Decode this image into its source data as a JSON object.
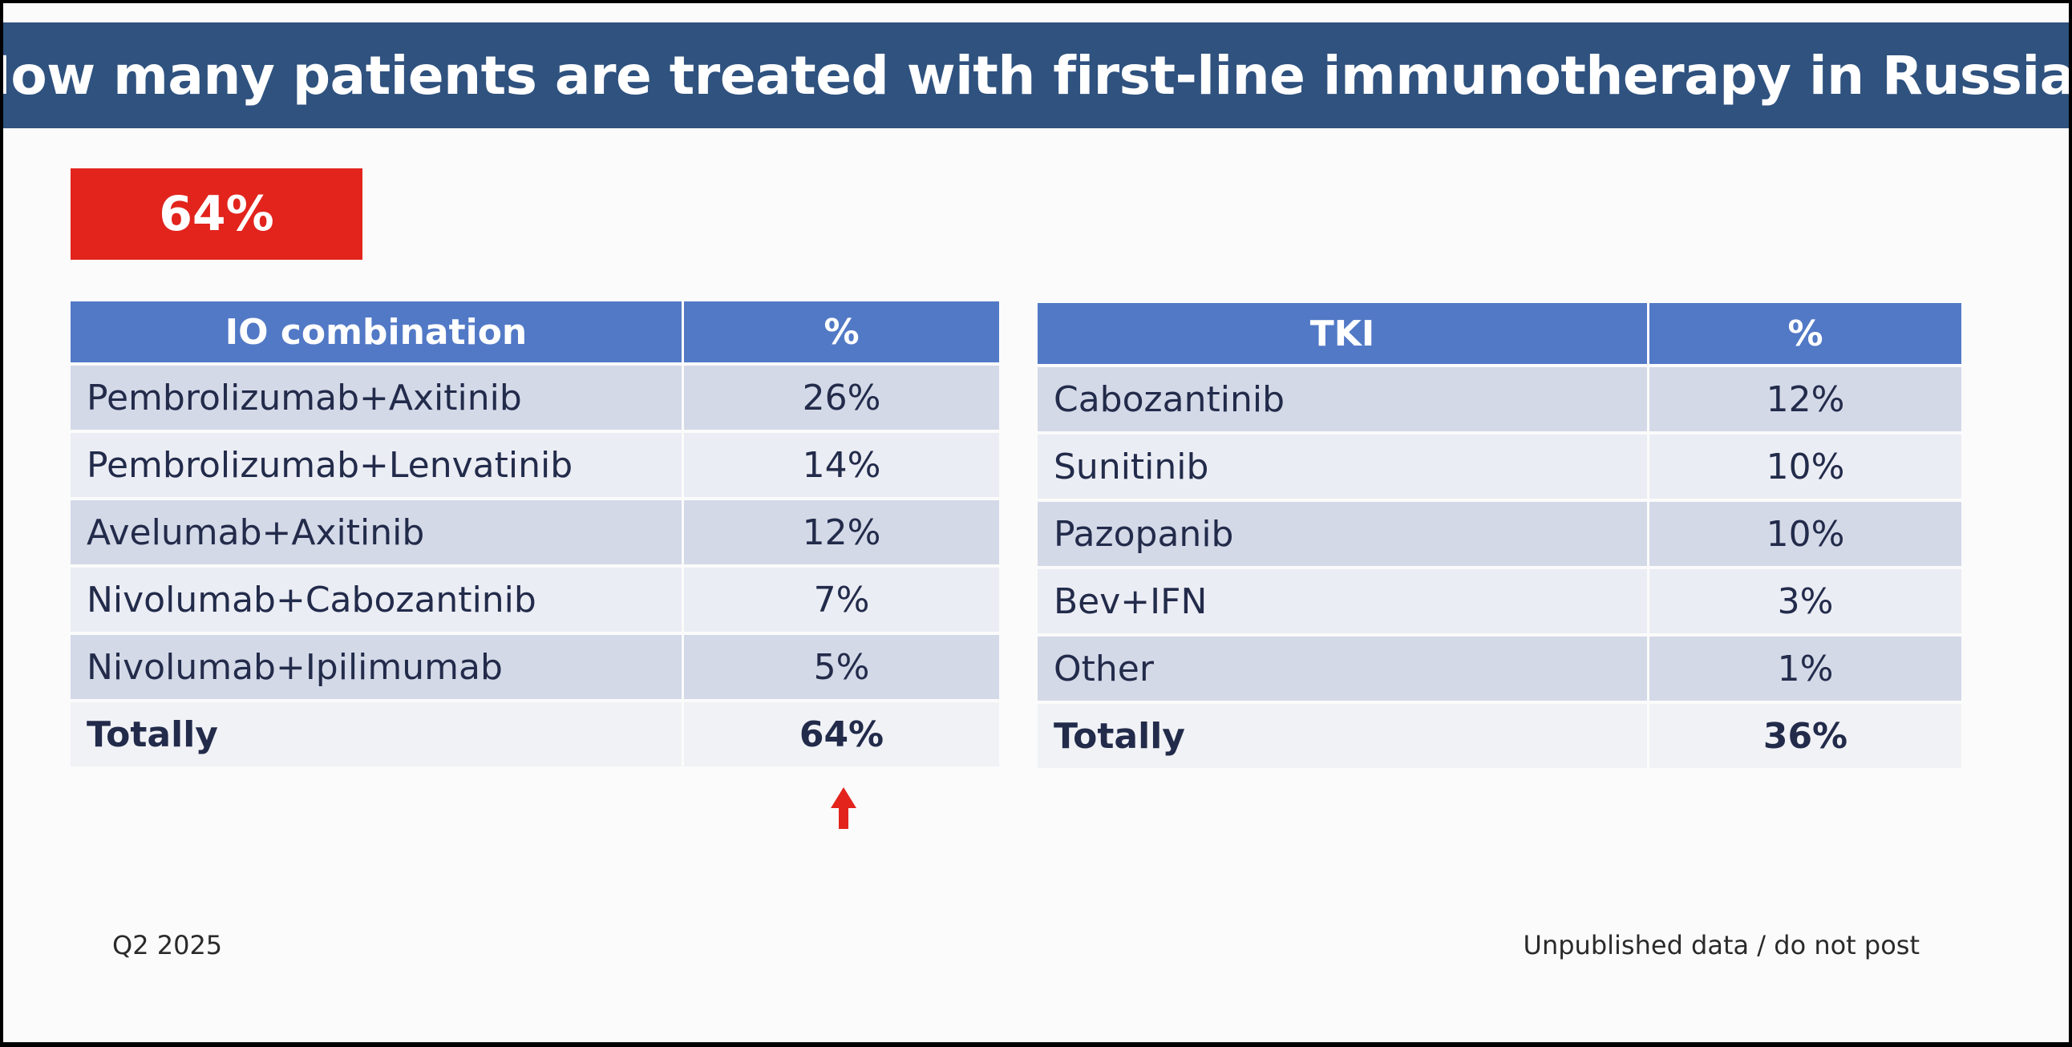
{
  "title": "How many patients are treated with first-line immunotherapy in Russia?",
  "badge": "64%",
  "io_table": {
    "headers": [
      "IO combination",
      "%"
    ],
    "rows": [
      {
        "name": "Pembrolizumab+Axitinib",
        "pct": "26%"
      },
      {
        "name": "Pembrolizumab+Lenvatinib",
        "pct": "14%"
      },
      {
        "name": "Avelumab+Axitinib",
        "pct": "12%"
      },
      {
        "name": "Nivolumab+Cabozantinib",
        "pct": "7%"
      },
      {
        "name": "Nivolumab+Ipilimumab",
        "pct": "5%"
      }
    ],
    "total": {
      "name": "Totally",
      "pct": "64%"
    }
  },
  "tki_table": {
    "headers": [
      "TKI",
      "%"
    ],
    "rows": [
      {
        "name": "Cabozantinib",
        "pct": "12%"
      },
      {
        "name": "Sunitinib",
        "pct": "10%"
      },
      {
        "name": "Pazopanib",
        "pct": "10%"
      },
      {
        "name": "Bev+IFN",
        "pct": "3%"
      },
      {
        "name": "Other",
        "pct": "1%"
      }
    ],
    "total": {
      "name": "Totally",
      "pct": "36%"
    }
  },
  "footer": {
    "left": "Q2 2025",
    "right": "Unpublished data / do not post"
  },
  "colors": {
    "title_bar": "#2f527f",
    "badge": "#e2241d",
    "table_header": "#5279c6",
    "arrow": "#e2241d"
  },
  "icons": {
    "arrow": "arrow-up-icon"
  }
}
